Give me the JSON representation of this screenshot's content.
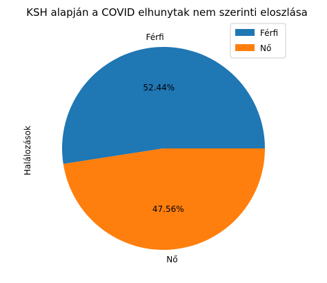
{
  "chart_data": {
    "type": "pie",
    "title": "KSH alapján a COVID elhunytak nem szerinti eloszlása",
    "ylabel": "Halálozások",
    "categories": [
      "Férfi",
      "Nő"
    ],
    "values": [
      52.44,
      47.56
    ],
    "percent_labels": [
      "52.44%",
      "47.56%"
    ],
    "colors": [
      "#1f77b4",
      "#ff7f0e"
    ],
    "legend": {
      "position": "top-right",
      "entries": [
        "Férfi",
        "Nő"
      ]
    }
  }
}
